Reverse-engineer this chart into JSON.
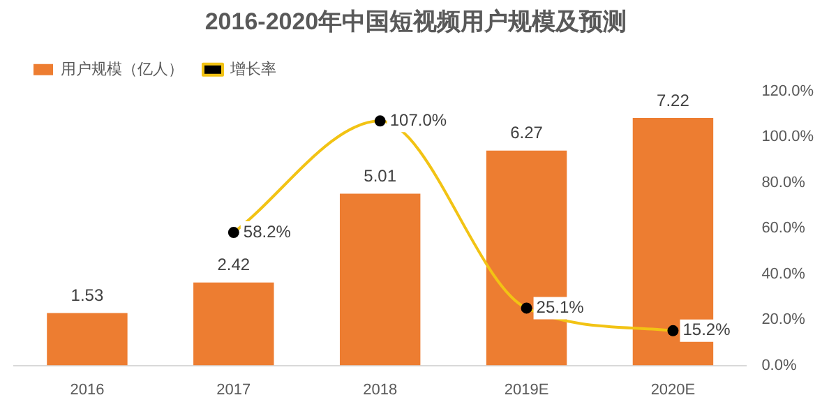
{
  "chart_data": {
    "type": "bar",
    "title": "2016-2020年中国短视频用户规模及预测",
    "categories": [
      "2016",
      "2017",
      "2018",
      "2019E",
      "2020E"
    ],
    "series": [
      {
        "name": "用户规模（亿人）",
        "color": "#ed7d31",
        "values": [
          1.53,
          2.42,
          5.01,
          6.27,
          7.22
        ],
        "value_labels": [
          "1.53",
          "2.42",
          "5.01",
          "6.27",
          "7.22"
        ]
      },
      {
        "name": "增长率",
        "type": "line",
        "axis": "y2",
        "color": "#f2c314",
        "marker": "circle",
        "values": [
          null,
          58.2,
          107.0,
          25.1,
          15.2
        ],
        "value_labels": [
          null,
          "58.2%",
          "107.0%",
          "25.1%",
          "15.2%"
        ]
      }
    ],
    "y2lim": [
      0,
      120
    ],
    "y2ticks": [
      {
        "value": 0,
        "label": "0.0%"
      },
      {
        "value": 20,
        "label": "20.0%"
      },
      {
        "value": 40,
        "label": "40.0%"
      },
      {
        "value": 60,
        "label": "60.0%"
      },
      {
        "value": 80,
        "label": "80.0%"
      },
      {
        "value": 100,
        "label": "100.0%"
      },
      {
        "value": 120,
        "label": "120.0%"
      }
    ],
    "legend": "top left",
    "grid": false
  }
}
